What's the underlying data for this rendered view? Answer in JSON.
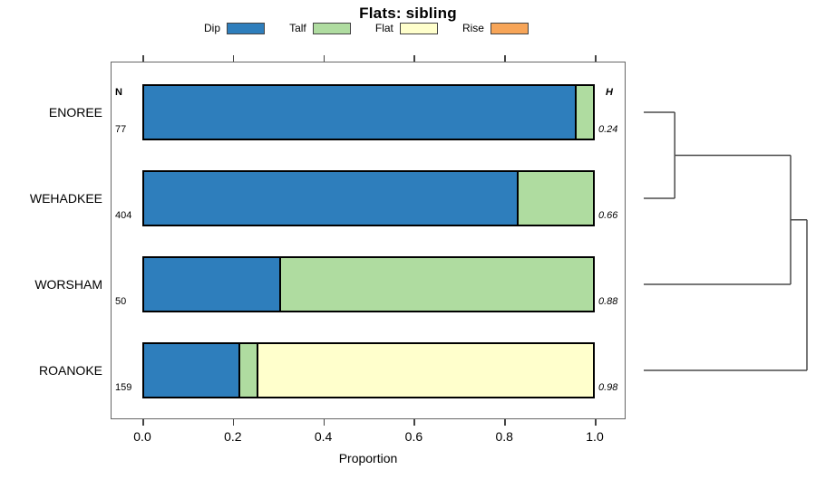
{
  "title": "Flats: sibling",
  "legend": [
    {
      "label": "Dip",
      "color": "#2E7EBC"
    },
    {
      "label": "Talf",
      "color": "#AFDCA0"
    },
    {
      "label": "Flat",
      "color": "#FFFFCC"
    },
    {
      "label": "Rise",
      "color": "#F7A558"
    }
  ],
  "columns": {
    "n_header": "N",
    "h_header": "H"
  },
  "axis": {
    "xlabel": "Proportion"
  },
  "chart_data": {
    "type": "bar",
    "stacked": true,
    "orientation": "horizontal",
    "title": "Flats: sibling",
    "xlabel": "Proportion",
    "xlim": [
      0,
      1
    ],
    "x_ticks": [
      0.0,
      0.2,
      0.4,
      0.6,
      0.8,
      1.0
    ],
    "x_tick_labels": [
      "0.0",
      "0.2",
      "0.4",
      "0.6",
      "0.8",
      "1.0"
    ],
    "categories": [
      "ENOREE",
      "WEHADKEE",
      "WORSHAM",
      "ROANOKE"
    ],
    "n_values": [
      "77",
      "404",
      "50",
      "159"
    ],
    "h_values": [
      "0.24",
      "0.66",
      "0.88",
      "0.98"
    ],
    "series": [
      {
        "name": "Dip",
        "color": "#2E7EBC",
        "values": [
          0.96,
          0.83,
          0.3,
          0.21
        ]
      },
      {
        "name": "Talf",
        "color": "#AFDCA0",
        "values": [
          0.04,
          0.17,
          0.7,
          0.04
        ]
      },
      {
        "name": "Flat",
        "color": "#FFFFCC",
        "values": [
          0.0,
          0.0,
          0.0,
          0.75
        ]
      },
      {
        "name": "Rise",
        "color": "#F7A558",
        "values": [
          0.0,
          0.0,
          0.0,
          0.0
        ]
      }
    ],
    "dendrogram": {
      "leaves": [
        "ENOREE",
        "WEHADKEE",
        "WORSHAM",
        "ROANOKE"
      ],
      "tree": {
        "height": 1.0,
        "children": [
          {
            "height": 0.9,
            "children": [
              {
                "height": 0.19,
                "children": [
                  {
                    "leaf": 0
                  },
                  {
                    "leaf": 1
                  }
                ]
              },
              {
                "leaf": 2
              }
            ]
          },
          {
            "leaf": 3
          }
        ]
      }
    }
  }
}
